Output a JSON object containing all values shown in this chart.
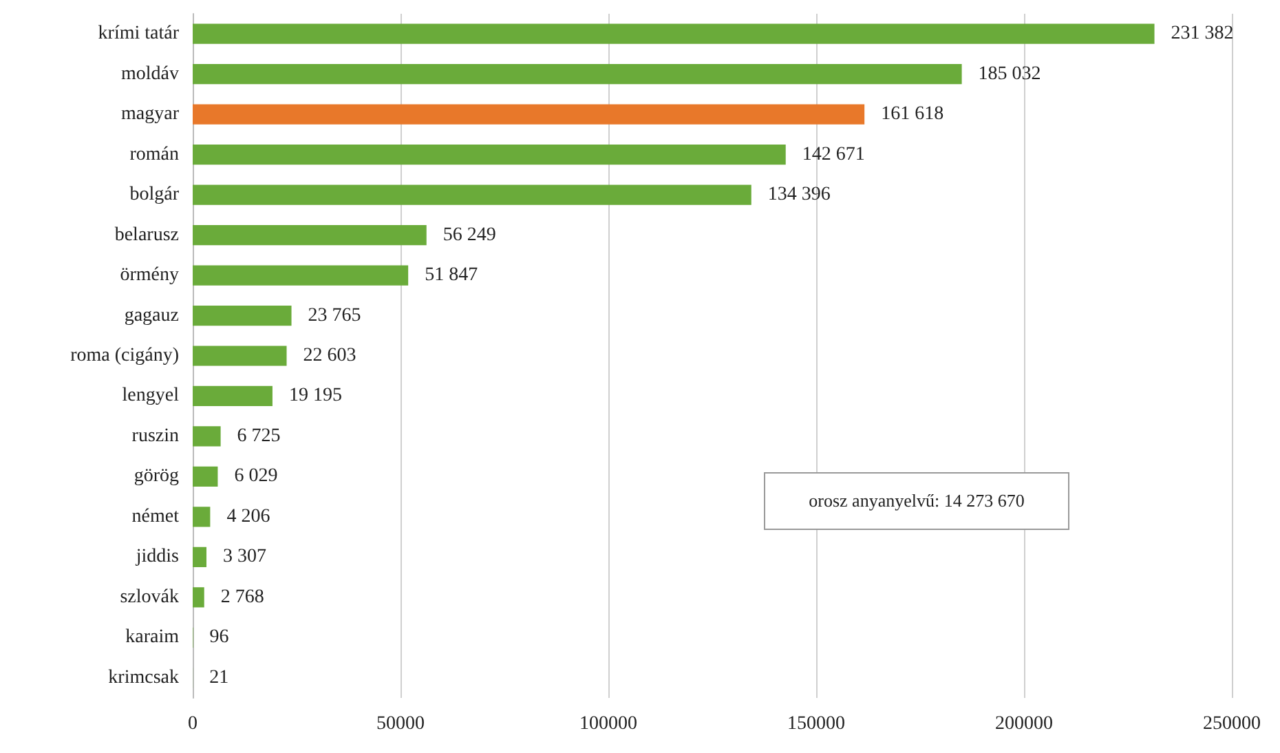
{
  "chart_data": {
    "type": "bar",
    "orientation": "horizontal",
    "categories": [
      "krími tatár",
      "moldáv",
      "magyar",
      "román",
      "bolgár",
      "belarusz",
      "örmény",
      "gagauz",
      "roma (cigány)",
      "lengyel",
      "ruszin",
      "görög",
      "német",
      "jiddis",
      "szlovák",
      "karaim",
      "krimcsak"
    ],
    "values": [
      231382,
      185032,
      161618,
      142671,
      134396,
      56249,
      51847,
      23765,
      22603,
      19195,
      6725,
      6029,
      4206,
      3307,
      2768,
      96,
      21
    ],
    "colors": [
      "#6aab3a",
      "#6aab3a",
      "#e8782a",
      "#6aab3a",
      "#6aab3a",
      "#6aab3a",
      "#6aab3a",
      "#6aab3a",
      "#6aab3a",
      "#6aab3a",
      "#6aab3a",
      "#6aab3a",
      "#6aab3a",
      "#6aab3a",
      "#6aab3a",
      "#6aab3a",
      "#6aab3a"
    ],
    "value_labels": [
      "231 382",
      "185 032",
      "161 618",
      "142 671",
      "134 396",
      "56 249",
      "51 847",
      "23 765",
      "22 603",
      "19 195",
      "6 725",
      "6 029",
      "4 206",
      "3 307",
      "2 768",
      "96",
      "21"
    ],
    "xlim": [
      0,
      250000
    ],
    "xticks": [
      0,
      50000,
      100000,
      150000,
      200000,
      250000
    ],
    "grid": "x",
    "annotations": [
      "orosz anyanyelvű: 14 273 670"
    ]
  }
}
